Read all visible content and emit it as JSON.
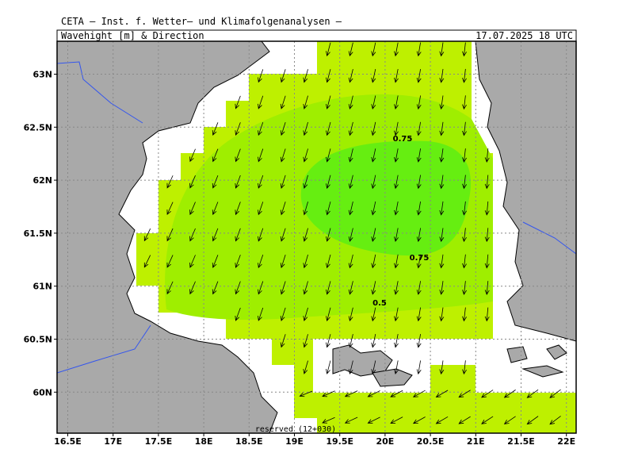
{
  "header": {
    "title": "CETA — Inst. f. Wetter— und Klimafolgenanalysen —",
    "subtitle": "Wavehight [m] & Direction",
    "date": "17.07.2025 18 UTC"
  },
  "axes": {
    "x_labels": [
      "16.5E",
      "17E",
      "17.5E",
      "18E",
      "18.5E",
      "19E",
      "19.5E",
      "20E",
      "20.5E",
      "21E",
      "21.5E",
      "22E"
    ],
    "y_labels": [
      "63N",
      "62.5N",
      "62N",
      "61.5N",
      "61N",
      "60.5N",
      "60N"
    ]
  },
  "contour_labels": [
    "0.75",
    "0.75",
    "0.5"
  ],
  "footer": "reserved (12+030)"
}
